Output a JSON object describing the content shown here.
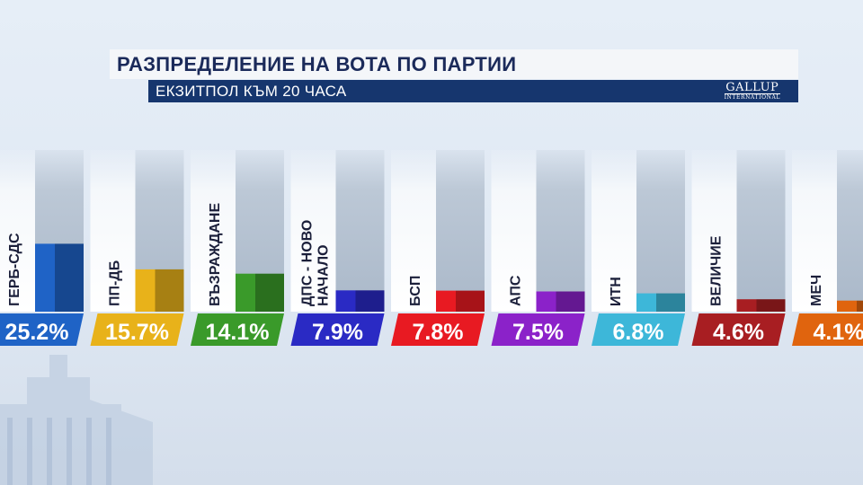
{
  "header": {
    "title": "РАЗПРЕДЕЛЕНИЕ НА ВОТА ПО ПАРТИИ",
    "subtitle": "ЕКЗИТПОЛ КЪМ 20 ЧАСА",
    "logo_line1": "GALLUP",
    "logo_line2": "INTERNATIONAL"
  },
  "chart_data": {
    "type": "bar",
    "categories": [
      "ГЕРБ-СДС",
      "ПП-ДБ",
      "ВЪЗРАЖДАНЕ",
      "ДПС - НОВО НАЧАЛО",
      "БСП",
      "АПС",
      "ИТН",
      "ВЕЛИЧИЕ",
      "МЕЧ"
    ],
    "values": [
      25.2,
      15.7,
      14.1,
      7.9,
      7.8,
      7.5,
      6.8,
      4.6,
      4.1
    ],
    "value_labels": [
      "25.2%",
      "15.7%",
      "14.1%",
      "7.9%",
      "7.8%",
      "7.5%",
      "6.8%",
      "4.6%",
      "4.1%"
    ],
    "colors": [
      "#1f63c6",
      "#e8b21a",
      "#3a9a2a",
      "#2a2ac4",
      "#e81a22",
      "#8b22c9",
      "#3db7d9",
      "#a81e22",
      "#e0640e"
    ],
    "ylim": [
      0,
      60
    ],
    "title": "РАЗПРЕДЕЛЕНИЕ НА ВОТА ПО ПАРТИИ",
    "subtitle": "ЕКЗИТПОЛ КЪМ 20 ЧАСА",
    "grid": false,
    "legend": "none"
  }
}
